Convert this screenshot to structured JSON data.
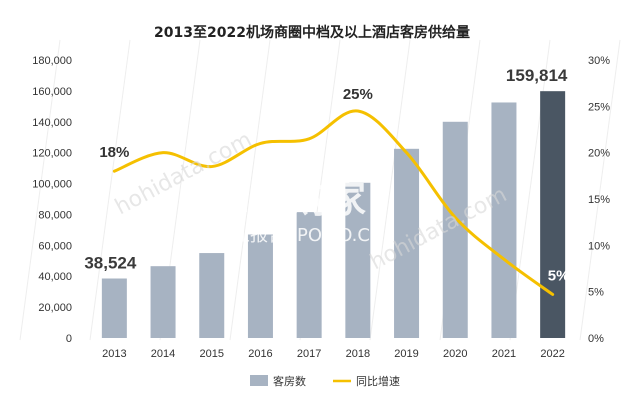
{
  "watermark": {
    "brand": "并购家",
    "sub": "行业报告 IPOIPO.CN",
    "diag": "hohidata.com"
  },
  "chart_data": {
    "type": "bar+line",
    "title": "2013至2022机场商圈中档及以上酒店客房供给量",
    "categories": [
      "2013",
      "2014",
      "2015",
      "2016",
      "2017",
      "2018",
      "2019",
      "2020",
      "2021",
      "2022"
    ],
    "left_axis": {
      "ylim": [
        0,
        180000
      ],
      "ticks": [
        "0",
        "20,000",
        "40,000",
        "60,000",
        "80,000",
        "100,000",
        "120,000",
        "140,000",
        "160,000",
        "180,000"
      ]
    },
    "right_axis": {
      "ylim": [
        0,
        30
      ],
      "ticks": [
        "0%",
        "5%",
        "10%",
        "15%",
        "20%",
        "25%",
        "30%"
      ]
    },
    "series": [
      {
        "name": "客房数",
        "kind": "bar",
        "axis": "left",
        "values": [
          38524,
          46500,
          55000,
          67000,
          81500,
          100500,
          122500,
          140000,
          152500,
          159814
        ],
        "color": "#a7b3c2",
        "highlight_color": "#4a5663",
        "data_labels": [
          {
            "index": 0,
            "text": "38,524"
          },
          {
            "index": 9,
            "text": "159,814"
          }
        ]
      },
      {
        "name": "同比增速",
        "kind": "line",
        "axis": "right",
        "values": [
          18,
          20,
          18.5,
          21,
          21.5,
          24.5,
          20,
          13,
          8.5,
          4.7
        ],
        "color": "#f5c000",
        "data_labels": [
          {
            "index": 0,
            "text": "18%"
          },
          {
            "index": 5,
            "text": "25%"
          },
          {
            "index": 9,
            "text": "5%"
          }
        ]
      }
    ],
    "legend_position": "bottom-center",
    "grid": false
  }
}
